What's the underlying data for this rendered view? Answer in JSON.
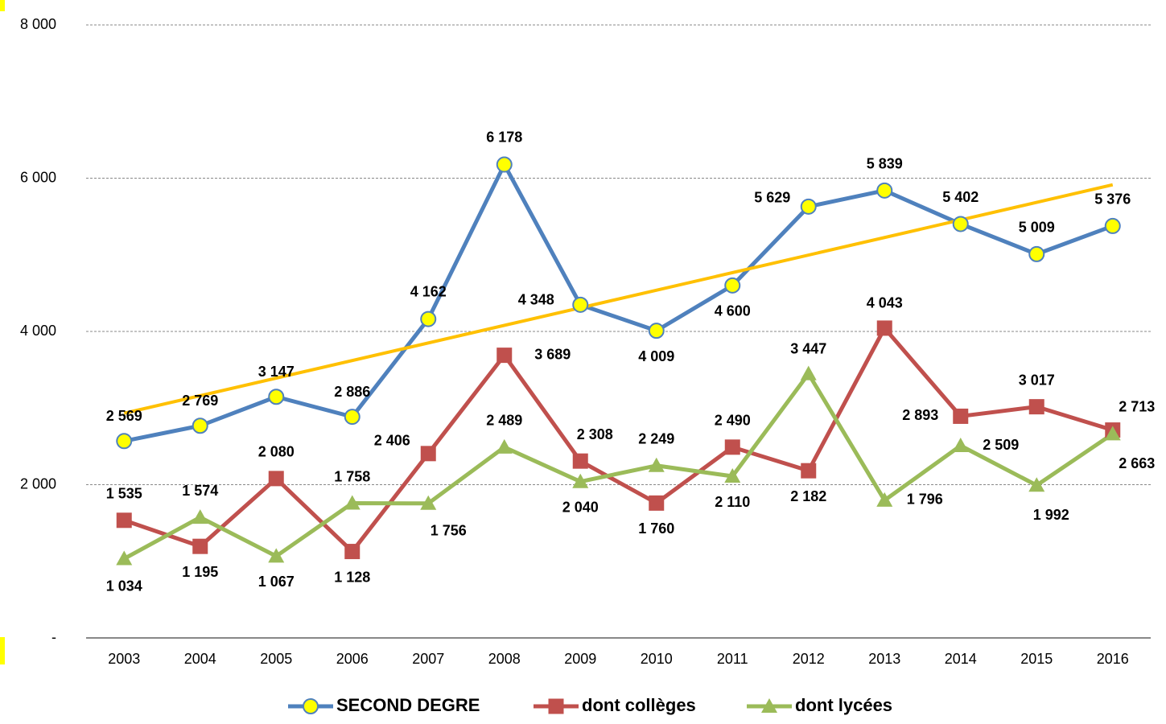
{
  "chart_data": {
    "type": "line",
    "categories": [
      "2003",
      "2004",
      "2005",
      "2006",
      "2007",
      "2008",
      "2009",
      "2010",
      "2011",
      "2012",
      "2013",
      "2014",
      "2015",
      "2016"
    ],
    "series": [
      {
        "name": "SECOND DEGRE",
        "color": "#4f81bd",
        "marker": "circle",
        "marker_fill": "#ffff00",
        "values": [
          2569,
          2769,
          3147,
          2886,
          4162,
          6178,
          4348,
          4009,
          4600,
          5629,
          5839,
          5402,
          5009,
          5376
        ],
        "value_labels": [
          "2 569",
          "2 769",
          "3 147",
          "2 886",
          "4 162",
          "6 178",
          "4 348",
          "4 009",
          "4 600",
          "5 629",
          "5 839",
          "5 402",
          "5 009",
          "5 376"
        ]
      },
      {
        "name": "dont collèges",
        "color": "#c0504d",
        "marker": "square",
        "marker_fill": "#c0504d",
        "values": [
          1535,
          1195,
          2080,
          1128,
          2406,
          3689,
          2308,
          1760,
          2490,
          2182,
          4043,
          2893,
          3017,
          2713
        ],
        "value_labels": [
          "1 535",
          "1 195",
          "2 080",
          "1 128",
          "2 406",
          "3 689",
          "2 308",
          "1 760",
          "2 490",
          "2 182",
          "4 043",
          "2 893",
          "3 017",
          "2 713"
        ]
      },
      {
        "name": "dont lycées",
        "color": "#9bbb59",
        "marker": "triangle",
        "marker_fill": "#9bbb59",
        "values": [
          1034,
          1574,
          1067,
          1758,
          1756,
          2489,
          2040,
          2249,
          2110,
          3447,
          1796,
          2509,
          1992,
          2663
        ],
        "value_labels": [
          "1 034",
          "1 574",
          "1 067",
          "1 758",
          "1 756",
          "2 489",
          "2 040",
          "2 249",
          "2 110",
          "3 447",
          "1 796",
          "2 509",
          "1 992",
          "2 663"
        ]
      }
    ],
    "trendline": {
      "color": "#ffc000",
      "values": [
        2932,
        5914
      ]
    },
    "ylim": [
      0,
      8000
    ],
    "yticks": [
      {
        "value": 0,
        "label": "-"
      },
      {
        "value": 2000,
        "label": "2 000"
      },
      {
        "value": 4000,
        "label": "4 000"
      },
      {
        "value": 6000,
        "label": "6 000"
      },
      {
        "value": 8000,
        "label": "8 000"
      }
    ],
    "grid": true,
    "legend": "bottom"
  }
}
